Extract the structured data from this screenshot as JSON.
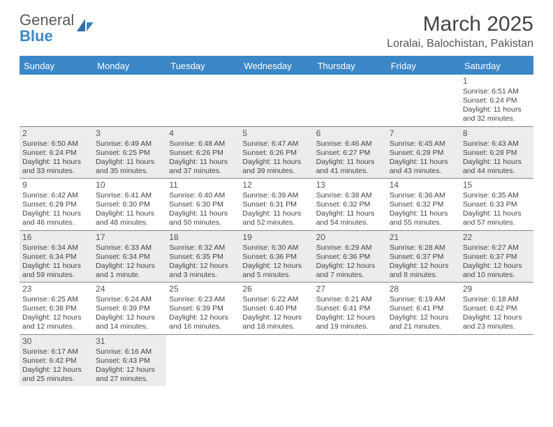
{
  "logo": {
    "text1": "General",
    "text2": "Blue"
  },
  "title": "March 2025",
  "location": "Loralai, Balochistan, Pakistan",
  "header_bg": "#3b87c8",
  "day_names": [
    "Sunday",
    "Monday",
    "Tuesday",
    "Wednesday",
    "Thursday",
    "Friday",
    "Saturday"
  ],
  "weeks": [
    [
      null,
      null,
      null,
      null,
      null,
      null,
      {
        "n": "1",
        "sr": "Sunrise: 6:51 AM",
        "ss": "Sunset: 6:24 PM",
        "dl": "Daylight: 11 hours and 32 minutes."
      }
    ],
    [
      {
        "n": "2",
        "sr": "Sunrise: 6:50 AM",
        "ss": "Sunset: 6:24 PM",
        "dl": "Daylight: 11 hours and 33 minutes.",
        "sh": true
      },
      {
        "n": "3",
        "sr": "Sunrise: 6:49 AM",
        "ss": "Sunset: 6:25 PM",
        "dl": "Daylight: 11 hours and 35 minutes.",
        "sh": true
      },
      {
        "n": "4",
        "sr": "Sunrise: 6:48 AM",
        "ss": "Sunset: 6:26 PM",
        "dl": "Daylight: 11 hours and 37 minutes.",
        "sh": true
      },
      {
        "n": "5",
        "sr": "Sunrise: 6:47 AM",
        "ss": "Sunset: 6:26 PM",
        "dl": "Daylight: 11 hours and 39 minutes.",
        "sh": true
      },
      {
        "n": "6",
        "sr": "Sunrise: 6:46 AM",
        "ss": "Sunset: 6:27 PM",
        "dl": "Daylight: 11 hours and 41 minutes.",
        "sh": true
      },
      {
        "n": "7",
        "sr": "Sunrise: 6:45 AM",
        "ss": "Sunset: 6:28 PM",
        "dl": "Daylight: 11 hours and 43 minutes.",
        "sh": true
      },
      {
        "n": "8",
        "sr": "Sunrise: 6:43 AM",
        "ss": "Sunset: 6:28 PM",
        "dl": "Daylight: 11 hours and 44 minutes.",
        "sh": true
      }
    ],
    [
      {
        "n": "9",
        "sr": "Sunrise: 6:42 AM",
        "ss": "Sunset: 6:29 PM",
        "dl": "Daylight: 11 hours and 46 minutes."
      },
      {
        "n": "10",
        "sr": "Sunrise: 6:41 AM",
        "ss": "Sunset: 6:30 PM",
        "dl": "Daylight: 11 hours and 48 minutes."
      },
      {
        "n": "11",
        "sr": "Sunrise: 6:40 AM",
        "ss": "Sunset: 6:30 PM",
        "dl": "Daylight: 11 hours and 50 minutes."
      },
      {
        "n": "12",
        "sr": "Sunrise: 6:39 AM",
        "ss": "Sunset: 6:31 PM",
        "dl": "Daylight: 11 hours and 52 minutes."
      },
      {
        "n": "13",
        "sr": "Sunrise: 6:38 AM",
        "ss": "Sunset: 6:32 PM",
        "dl": "Daylight: 11 hours and 54 minutes."
      },
      {
        "n": "14",
        "sr": "Sunrise: 6:36 AM",
        "ss": "Sunset: 6:32 PM",
        "dl": "Daylight: 11 hours and 55 minutes."
      },
      {
        "n": "15",
        "sr": "Sunrise: 6:35 AM",
        "ss": "Sunset: 6:33 PM",
        "dl": "Daylight: 11 hours and 57 minutes."
      }
    ],
    [
      {
        "n": "16",
        "sr": "Sunrise: 6:34 AM",
        "ss": "Sunset: 6:34 PM",
        "dl": "Daylight: 11 hours and 59 minutes.",
        "sh": true
      },
      {
        "n": "17",
        "sr": "Sunrise: 6:33 AM",
        "ss": "Sunset: 6:34 PM",
        "dl": "Daylight: 12 hours and 1 minute.",
        "sh": true
      },
      {
        "n": "18",
        "sr": "Sunrise: 6:32 AM",
        "ss": "Sunset: 6:35 PM",
        "dl": "Daylight: 12 hours and 3 minutes.",
        "sh": true
      },
      {
        "n": "19",
        "sr": "Sunrise: 6:30 AM",
        "ss": "Sunset: 6:36 PM",
        "dl": "Daylight: 12 hours and 5 minutes.",
        "sh": true
      },
      {
        "n": "20",
        "sr": "Sunrise: 6:29 AM",
        "ss": "Sunset: 6:36 PM",
        "dl": "Daylight: 12 hours and 7 minutes.",
        "sh": true
      },
      {
        "n": "21",
        "sr": "Sunrise: 6:28 AM",
        "ss": "Sunset: 6:37 PM",
        "dl": "Daylight: 12 hours and 8 minutes.",
        "sh": true
      },
      {
        "n": "22",
        "sr": "Sunrise: 6:27 AM",
        "ss": "Sunset: 6:37 PM",
        "dl": "Daylight: 12 hours and 10 minutes.",
        "sh": true
      }
    ],
    [
      {
        "n": "23",
        "sr": "Sunrise: 6:25 AM",
        "ss": "Sunset: 6:38 PM",
        "dl": "Daylight: 12 hours and 12 minutes."
      },
      {
        "n": "24",
        "sr": "Sunrise: 6:24 AM",
        "ss": "Sunset: 6:39 PM",
        "dl": "Daylight: 12 hours and 14 minutes."
      },
      {
        "n": "25",
        "sr": "Sunrise: 6:23 AM",
        "ss": "Sunset: 6:39 PM",
        "dl": "Daylight: 12 hours and 16 minutes."
      },
      {
        "n": "26",
        "sr": "Sunrise: 6:22 AM",
        "ss": "Sunset: 6:40 PM",
        "dl": "Daylight: 12 hours and 18 minutes."
      },
      {
        "n": "27",
        "sr": "Sunrise: 6:21 AM",
        "ss": "Sunset: 6:41 PM",
        "dl": "Daylight: 12 hours and 19 minutes."
      },
      {
        "n": "28",
        "sr": "Sunrise: 6:19 AM",
        "ss": "Sunset: 6:41 PM",
        "dl": "Daylight: 12 hours and 21 minutes."
      },
      {
        "n": "29",
        "sr": "Sunrise: 6:18 AM",
        "ss": "Sunset: 6:42 PM",
        "dl": "Daylight: 12 hours and 23 minutes."
      }
    ],
    [
      {
        "n": "30",
        "sr": "Sunrise: 6:17 AM",
        "ss": "Sunset: 6:42 PM",
        "dl": "Daylight: 12 hours and 25 minutes.",
        "sh": true
      },
      {
        "n": "31",
        "sr": "Sunrise: 6:16 AM",
        "ss": "Sunset: 6:43 PM",
        "dl": "Daylight: 12 hours and 27 minutes.",
        "sh": true
      },
      null,
      null,
      null,
      null,
      null
    ]
  ]
}
